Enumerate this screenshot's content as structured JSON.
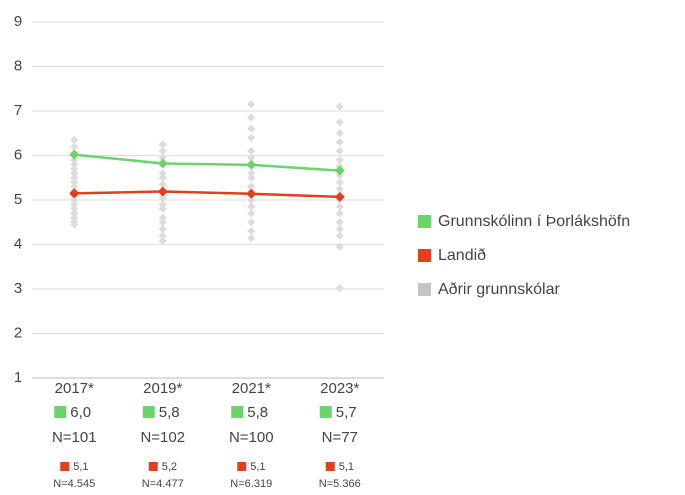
{
  "chart_data": {
    "type": "line",
    "categories": [
      "2017*",
      "2019*",
      "2021*",
      "2023*"
    ],
    "ylim": [
      1,
      9
    ],
    "yticks": [
      1,
      2,
      3,
      4,
      5,
      6,
      7,
      8,
      9
    ],
    "grid": true,
    "legend": "right",
    "series": [
      {
        "name": "Grunnskólinn í Þorlákshöfn",
        "color": "#6ad56b",
        "values": [
          6.02,
          5.82,
          5.79,
          5.66
        ],
        "value_labels": [
          "6,0",
          "5,8",
          "5,8",
          "5,7"
        ],
        "n_labels": [
          "N=101",
          "N=102",
          "N=100",
          "N=77"
        ]
      },
      {
        "name": "Landið",
        "color": "#e0401c",
        "values": [
          5.15,
          5.19,
          5.14,
          5.07
        ],
        "value_labels": [
          "5,1",
          "5,2",
          "5,1",
          "5,1"
        ],
        "n_labels": [
          "N=4.545",
          "N=4.477",
          "N=6.319",
          "N=5.366"
        ]
      },
      {
        "name": "Aðrir grunnskólar",
        "color": "#c4c4c4",
        "type": "scatter",
        "values": [
          [
            6.35,
            6.2,
            6.05,
            5.9,
            5.8,
            5.7,
            5.6,
            5.5,
            5.4,
            5.3,
            5.2,
            5.1,
            5.0,
            4.9,
            4.8,
            4.7,
            4.6,
            4.5,
            4.45
          ],
          [
            6.25,
            6.1,
            5.95,
            5.8,
            5.6,
            5.5,
            5.35,
            5.2,
            5.05,
            4.9,
            4.8,
            4.6,
            4.5,
            4.35,
            4.2,
            4.08
          ],
          [
            7.15,
            6.85,
            6.6,
            6.4,
            6.1,
            5.95,
            5.8,
            5.6,
            5.5,
            5.3,
            5.2,
            5.0,
            4.85,
            4.7,
            4.5,
            4.3,
            4.15
          ],
          [
            7.1,
            6.75,
            6.5,
            6.3,
            6.1,
            5.9,
            5.75,
            5.55,
            5.4,
            5.25,
            5.0,
            4.85,
            4.7,
            4.5,
            4.35,
            4.2,
            3.95,
            3.02
          ]
        ]
      }
    ]
  }
}
